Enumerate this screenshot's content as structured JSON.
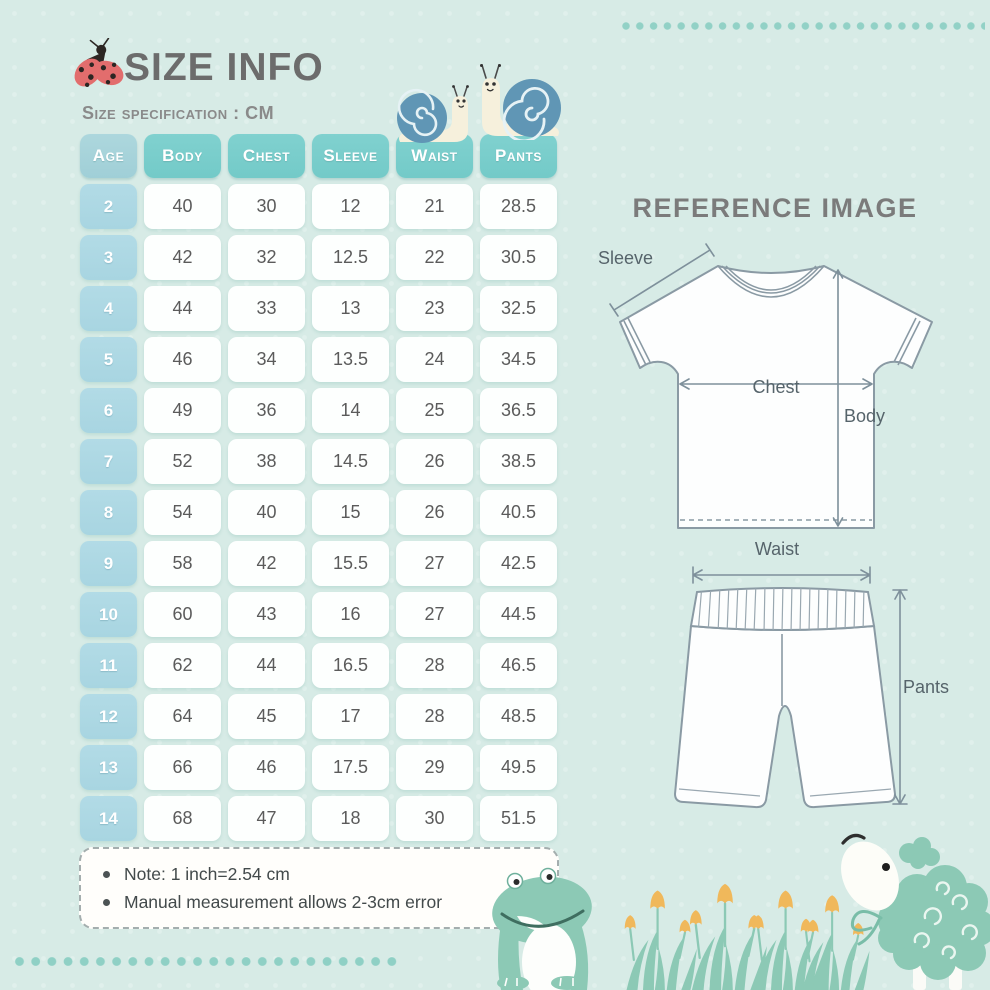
{
  "header": {
    "title": "SIZE INFO",
    "subtitle": "Size specification : CM"
  },
  "size_table": {
    "columns": [
      "Age",
      "Body",
      "Chest",
      "Sleeve",
      "Waist",
      "Pants"
    ],
    "rows": [
      [
        "2",
        "40",
        "30",
        "12",
        "21",
        "28.5"
      ],
      [
        "3",
        "42",
        "32",
        "12.5",
        "22",
        "30.5"
      ],
      [
        "4",
        "44",
        "33",
        "13",
        "23",
        "32.5"
      ],
      [
        "5",
        "46",
        "34",
        "13.5",
        "24",
        "34.5"
      ],
      [
        "6",
        "49",
        "36",
        "14",
        "25",
        "36.5"
      ],
      [
        "7",
        "52",
        "38",
        "14.5",
        "26",
        "38.5"
      ],
      [
        "8",
        "54",
        "40",
        "15",
        "26",
        "40.5"
      ],
      [
        "9",
        "58",
        "42",
        "15.5",
        "27",
        "42.5"
      ],
      [
        "10",
        "60",
        "43",
        "16",
        "27",
        "44.5"
      ],
      [
        "11",
        "62",
        "44",
        "16.5",
        "28",
        "46.5"
      ],
      [
        "12",
        "64",
        "45",
        "17",
        "28",
        "48.5"
      ],
      [
        "13",
        "66",
        "46",
        "17.5",
        "29",
        "49.5"
      ],
      [
        "14",
        "68",
        "47",
        "18",
        "30",
        "51.5"
      ]
    ]
  },
  "notes": {
    "items": [
      "Note: 1 inch=2.54 cm",
      "Manual measurement allows 2-3cm error"
    ]
  },
  "reference": {
    "title": "REFERENCE IMAGE",
    "labels": {
      "sleeve": "Sleeve",
      "chest": "Chest",
      "body": "Body",
      "waist": "Waist",
      "pants": "Pants"
    }
  },
  "colors": {
    "background": "#d7ebe6",
    "header_teal": "#73cac8",
    "age_header": "#a0cfd7",
    "age_cell": "#a8d5e1",
    "cell_bg": "#fdfffe",
    "cell_text": "#5b5b5b",
    "title_text": "#6c6c6c",
    "subtitle_text": "#8a8a8a",
    "note_text": "#434a4b",
    "outline_gray": "#8a9aa4",
    "label_text": "#56646b",
    "deco_teal": "#8cc9b5",
    "dot_teal": "#92d1c6",
    "snail_shell_blue": "#6096b5",
    "snail_body_cream": "#f6f0dc",
    "ladybug_red": "#e26d6d",
    "tulip_yellow": "#f0b85b"
  }
}
